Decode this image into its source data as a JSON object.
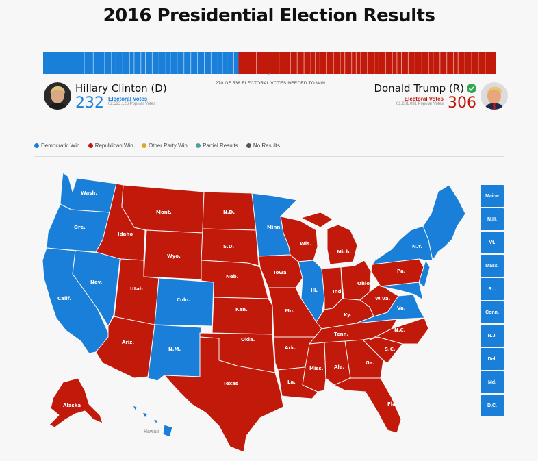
{
  "title": "2016 Presidential Election Results",
  "needed_text": "270 OF 538 ELECTORAL VOTES NEEDED TO WIN",
  "colors": {
    "democratic": "#1a7fd9",
    "republican": "#c11a0b",
    "other": "#e9a41f",
    "partial": "#4aa39a",
    "none": "#555555",
    "check": "#2fa84f"
  },
  "electoral_bar": {
    "dem_ev": 232,
    "rep_ev": 306,
    "total": 538
  },
  "candidates": {
    "dem": {
      "name": "Hillary Clinton (D)",
      "electoral_votes": "232",
      "ev_label": "Electoral Votes",
      "popular_votes": "62,523,126 Popular Votes"
    },
    "rep": {
      "name": "Donald Trump (R)",
      "electoral_votes": "306",
      "ev_label": "Electoral Votes",
      "popular_votes": "61,201,031 Popular Votes",
      "winner": true
    }
  },
  "legend": [
    {
      "label": "Democratic Win",
      "color": "#1a7fd9"
    },
    {
      "label": "Republican Win",
      "color": "#c11a0b"
    },
    {
      "label": "Other Party Win",
      "color": "#e9a41f"
    },
    {
      "label": "Partial Results",
      "color": "#4aa39a"
    },
    {
      "label": "No Results",
      "color": "#555555"
    }
  ],
  "map_labels": {
    "wash": "Wash.",
    "ore": "Ore.",
    "calif": "Calif.",
    "nev": "Nev.",
    "idaho": "Idaho",
    "mont": "Mont.",
    "wyo": "Wyo.",
    "utah": "Utah",
    "colo": "Colo.",
    "ariz": "Ariz.",
    "nm": "N.M.",
    "nd": "N.D.",
    "sd": "S.D.",
    "neb": "Neb.",
    "kan": "Kan.",
    "okla": "Okla.",
    "texas": "Texas",
    "minn": "Minn.",
    "iowa": "Iowa",
    "mo": "Mo.",
    "ark": "Ark.",
    "la": "La.",
    "wis": "Wis.",
    "ill": "Ill.",
    "mich": "Mich.",
    "ind": "Ind.",
    "ohio": "Ohio",
    "ky": "Ky.",
    "tenn": "Tenn.",
    "miss": "Miss.",
    "ala": "Ala.",
    "ga": "Ga.",
    "fla": "Fla.",
    "sc": "S.C.",
    "nc": "N.C.",
    "va": "Va.",
    "wva": "W.Va.",
    "pa": "Pa.",
    "ny": "N.Y.",
    "alaska": "Alaska",
    "hawaii": "Hawaii"
  },
  "northeast_boxes": [
    "Maine",
    "N.H.",
    "Vt.",
    "Mass.",
    "R.I.",
    "Conn.",
    "N.J.",
    "Del.",
    "Md.",
    "D.C."
  ]
}
